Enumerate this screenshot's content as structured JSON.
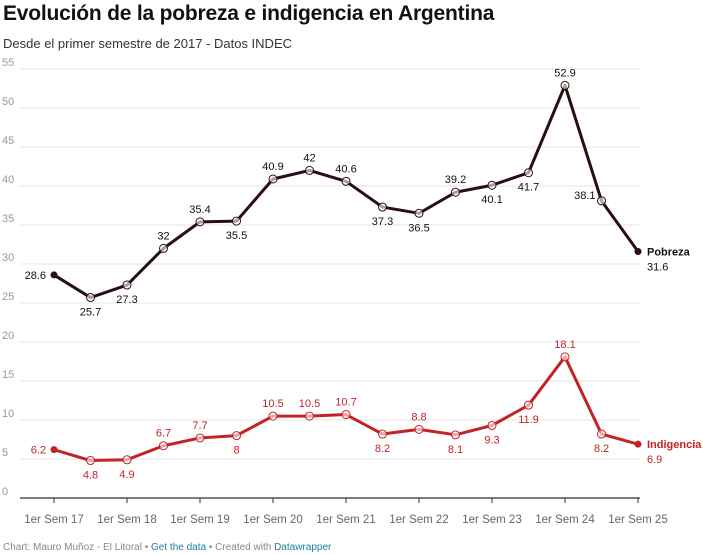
{
  "title": "Evolución de la pobreza e indigencia en Argentina",
  "subtitle": "Desde el primer semestre de 2017 - Datos INDEC",
  "footer": {
    "chart_by": "Chart: Mauro Muñoz - El Litoral",
    "sep": "•",
    "get_data": "Get the data",
    "created": "Created with",
    "datawrapper": "Datawrapper"
  },
  "chart_data": {
    "type": "line",
    "title": "Evolución de la pobreza e indigencia en Argentina",
    "subtitle": "Desde el primer semestre de 2017 - Datos INDEC",
    "x_tick_labels": [
      "1er Sem 17",
      "1er Sem 18",
      "1er Sem 19",
      "1er Sem 20",
      "1er Sem 21",
      "1er Sem 22",
      "1er Sem 23",
      "1er Sem 24",
      "1er Sem 25"
    ],
    "x": [
      "1S 2017",
      "2S 2017",
      "1S 2018",
      "2S 2018",
      "1S 2019",
      "2S 2019",
      "1S 2020",
      "2S 2020",
      "1S 2021",
      "2S 2021",
      "1S 2022",
      "2S 2022",
      "1S 2023",
      "2S 2023",
      "1S 2024",
      "2S 2024",
      "1S 2025"
    ],
    "ylim": [
      0,
      55
    ],
    "y_ticks": [
      0,
      5,
      10,
      15,
      20,
      25,
      30,
      35,
      40,
      45,
      50,
      55
    ],
    "grid": true,
    "series": [
      {
        "name": "Pobreza",
        "color": "#2b0e0e",
        "values": [
          28.6,
          25.7,
          27.3,
          32,
          35.4,
          35.5,
          40.9,
          42,
          40.6,
          37.3,
          36.5,
          39.2,
          40.1,
          41.7,
          52.9,
          38.1,
          31.6
        ]
      },
      {
        "name": "Indigencia",
        "color": "#c42326",
        "values": [
          6.2,
          4.8,
          4.9,
          6.7,
          7.7,
          8,
          10.5,
          10.5,
          10.7,
          8.2,
          8.8,
          8.1,
          9.3,
          11.9,
          18.1,
          8.2,
          6.9
        ]
      }
    ]
  }
}
